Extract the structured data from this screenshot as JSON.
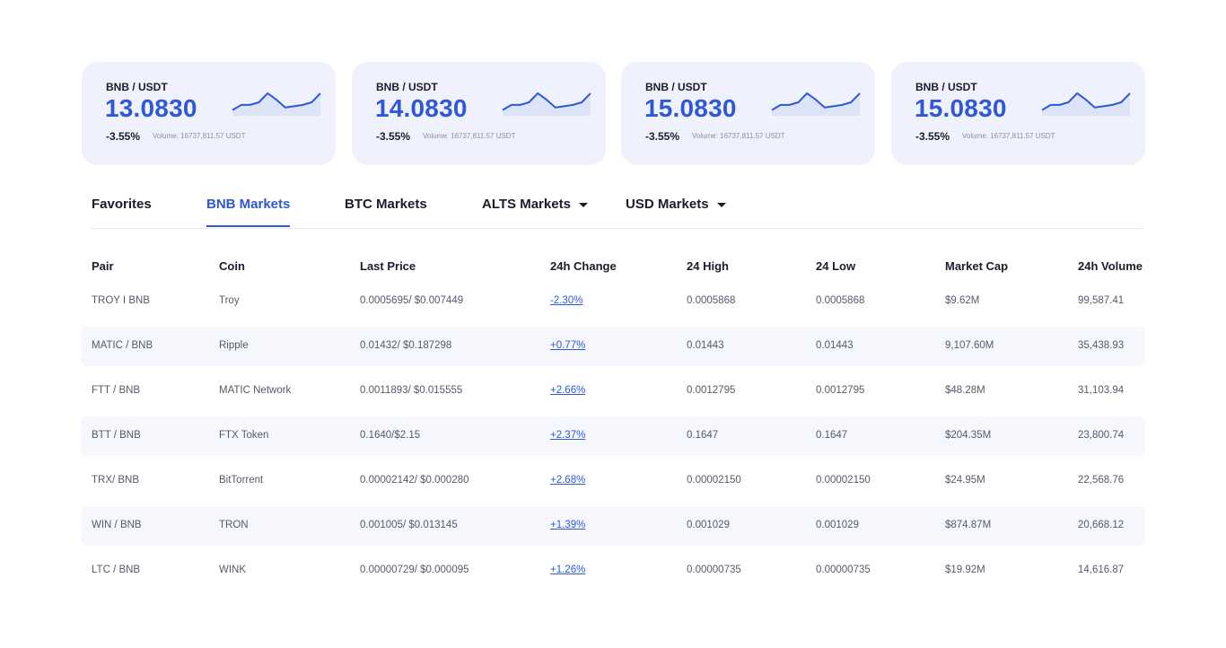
{
  "tickers": [
    {
      "pair": "BNB / USDT",
      "price": "13.0830",
      "change": "-3.55%",
      "volume": "Volume: 16737,811.57 USDT",
      "spark": [
        3,
        7,
        7,
        9,
        16,
        11,
        5,
        6,
        7,
        9,
        16
      ],
      "accent": "#2e58d6"
    },
    {
      "pair": "BNB / USDT",
      "price": "14.0830",
      "change": "-3.55%",
      "volume": "Volume: 16737,811.57 USDT",
      "spark": [
        3,
        7,
        7,
        9,
        16,
        11,
        5,
        6,
        7,
        9,
        16
      ],
      "accent": "#2e58d6"
    },
    {
      "pair": "BNB / USDT",
      "price": "15.0830",
      "change": "-3.55%",
      "volume": "Volume: 16737,811.57 USDT",
      "spark": [
        3,
        7,
        7,
        9,
        16,
        11,
        5,
        6,
        7,
        9,
        16
      ],
      "accent": "#2e58d6"
    },
    {
      "pair": "BNB / USDT",
      "price": "15.0830",
      "change": "-3.55%",
      "volume": "Volume: 16737,811.57 USDT",
      "spark": [
        3,
        7,
        7,
        9,
        16,
        11,
        5,
        6,
        7,
        9,
        16
      ],
      "accent": "#2e58d6"
    }
  ],
  "tabs": [
    {
      "label": "Favorites",
      "active": false,
      "dropdown": false
    },
    {
      "label": "BNB Markets",
      "active": true,
      "dropdown": false
    },
    {
      "label": "BTC Markets",
      "active": false,
      "dropdown": false
    },
    {
      "label": "ALTS Markets",
      "active": false,
      "dropdown": true
    },
    {
      "label": "USD Markets",
      "active": false,
      "dropdown": true
    }
  ],
  "table": {
    "columns": [
      "Pair",
      "Coin",
      "Last Price",
      "24h Change",
      "24 High",
      "24 Low",
      "Market Cap",
      "24h Volume"
    ],
    "rows": [
      [
        "TROY I BNB",
        "Troy",
        "0.0005695/ $0.007449",
        "-2.30%",
        "0.0005868",
        "0.0005868",
        "$9.62M",
        "99,587.41"
      ],
      [
        "MATIC / BNB",
        "Ripple",
        "0.01432/ $0.187298",
        "+0.77%",
        "0.01443",
        "0.01443",
        "9,107.60M",
        "35,438.93"
      ],
      [
        "FTT / BNB",
        "MATIC Network",
        "0.0011893/ $0.015555",
        "+2.66%",
        "0.0012795",
        "0.0012795",
        "$48.28M",
        "31,103.94"
      ],
      [
        "BTT / BNB",
        "FTX Token",
        "0.1640/$2.15",
        "+2.37%",
        "0.1647",
        "0.1647",
        "$204.35M",
        "23,800.74"
      ],
      [
        "TRX/ BNB",
        "BitTorrent",
        "0.00002142/ $0.000280",
        "+2.68%",
        "0.00002150",
        "0.00002150",
        "$24.95M",
        "22,568.76"
      ],
      [
        "WIN / BNB",
        "TRON",
        "0.001005/ $0.013145",
        "+1.39%",
        "0.001029",
        "0.001029",
        "$874.87M",
        "20,668.12"
      ],
      [
        "LTC / BNB",
        "WINK",
        "0.00000729/ $0.000095",
        "+1.26%",
        "0.00000735",
        "0.00000735",
        "$19.92M",
        "14,616.87"
      ]
    ]
  }
}
